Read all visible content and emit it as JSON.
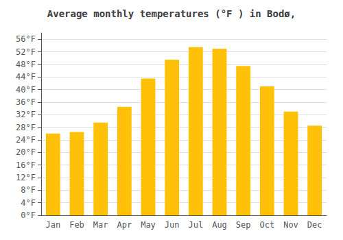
{
  "chart_data": {
    "type": "bar",
    "title": "Average monthly temperatures (°F ) in Bodø,",
    "categories": [
      "Jan",
      "Feb",
      "Mar",
      "Apr",
      "May",
      "Jun",
      "Jul",
      "Aug",
      "Sep",
      "Oct",
      "Nov",
      "Dec"
    ],
    "values": [
      26,
      26.5,
      29.5,
      34.5,
      43.5,
      49.5,
      53.5,
      53,
      47.5,
      41,
      33,
      28.5
    ],
    "color": "#FFC107",
    "ylim": [
      0,
      58
    ],
    "yticks": [
      {
        "value": 0,
        "label": "0°F"
      },
      {
        "value": 4,
        "label": "4°F"
      },
      {
        "value": 8,
        "label": "8°F"
      },
      {
        "value": 12,
        "label": "12°F"
      },
      {
        "value": 16,
        "label": "16°F"
      },
      {
        "value": 20,
        "label": "20°F"
      },
      {
        "value": 24,
        "label": "24°F"
      },
      {
        "value": 28,
        "label": "28°F"
      },
      {
        "value": 32,
        "label": "32°F"
      },
      {
        "value": 36,
        "label": "36°F"
      },
      {
        "value": 40,
        "label": "40°F"
      },
      {
        "value": 44,
        "label": "44°F"
      },
      {
        "value": 48,
        "label": "48°F"
      },
      {
        "value": 52,
        "label": "52°F"
      },
      {
        "value": 56,
        "label": "56°F"
      }
    ],
    "grid": true
  }
}
